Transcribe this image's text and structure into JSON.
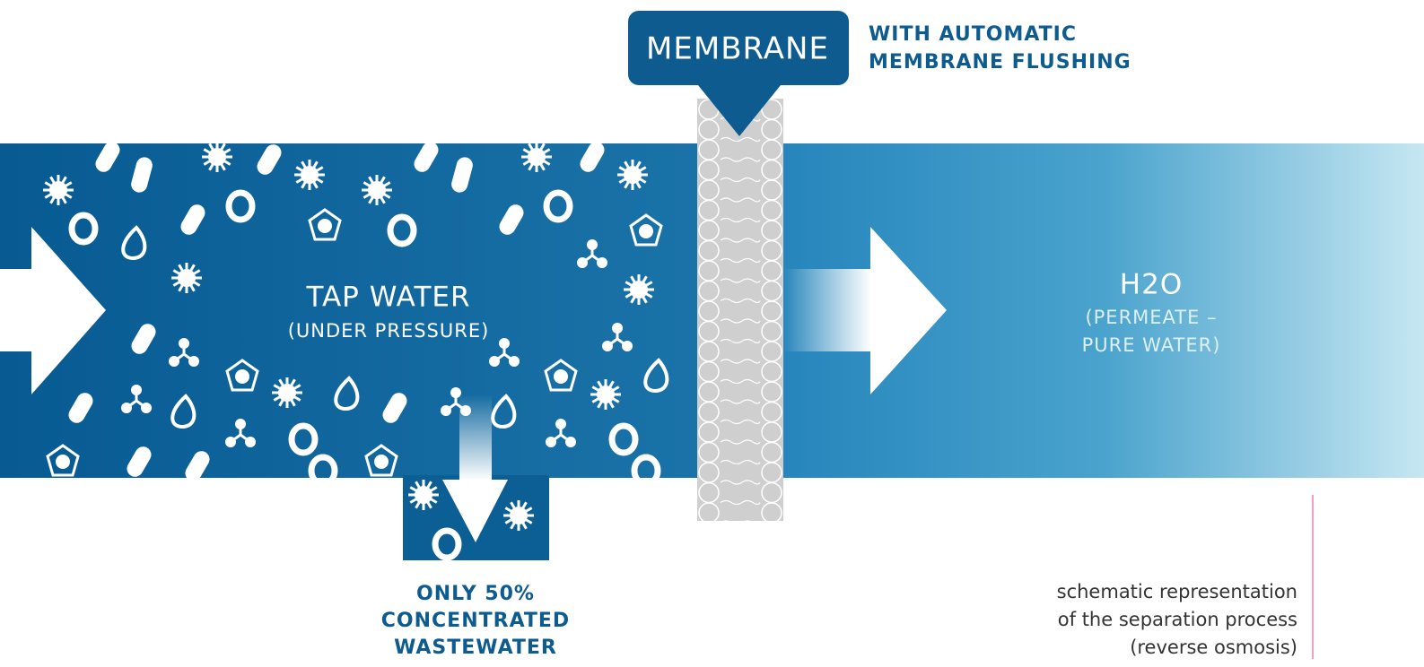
{
  "membrane": {
    "label": "MEMBRANE",
    "note": [
      "WITH AUTOMATIC",
      "MEMBRANE FLUSHING"
    ]
  },
  "inlet": {
    "title": "TAP WATER",
    "subtitle": "(UNDER PRESSURE)"
  },
  "permeate": {
    "title": "H2O",
    "subtitle": [
      "(PERMEATE –",
      "PURE WATER)"
    ]
  },
  "concentrate": {
    "lines": [
      "ONLY 50%",
      "CONCENTRATED",
      "WASTEWATER"
    ]
  },
  "caption": {
    "lines": [
      "schematic representation",
      "of the separation process",
      "(reverse osmosis)"
    ]
  }
}
